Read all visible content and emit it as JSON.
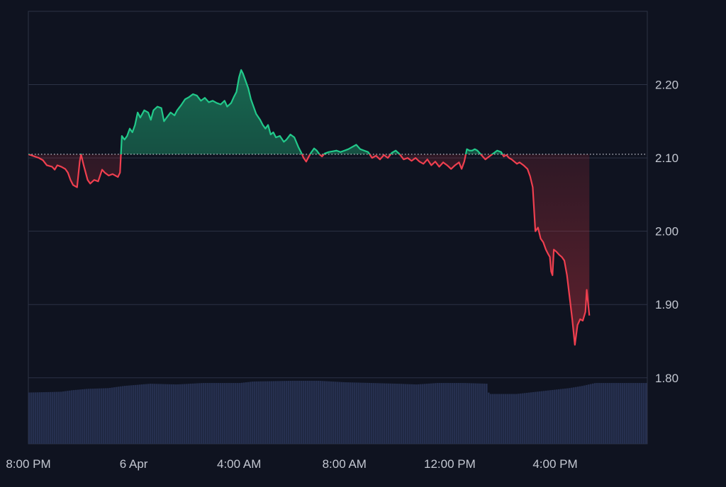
{
  "chart_data": {
    "type": "area",
    "baseline": 2.105,
    "ylim": [
      1.71,
      2.3
    ],
    "y_ticks": [
      {
        "value": 2.2,
        "label": "2.20"
      },
      {
        "value": 2.1,
        "label": "2.10"
      },
      {
        "value": 2.0,
        "label": "2.00"
      },
      {
        "value": 1.9,
        "label": "1.90"
      },
      {
        "value": 1.8,
        "label": "1.80"
      }
    ],
    "x_ticks": [
      {
        "t": 0,
        "label": "8:00 PM"
      },
      {
        "t": 4,
        "label": "6 Apr"
      },
      {
        "t": 8,
        "label": "4:00 AM"
      },
      {
        "t": 12,
        "label": "8:00 AM"
      },
      {
        "t": 16,
        "label": "12:00 PM"
      },
      {
        "t": 20,
        "label": "4:00 PM"
      }
    ],
    "x_range": [
      0,
      23.5
    ],
    "colors": {
      "up": "#22c98a",
      "down": "#ef3f4f",
      "grid": "#2c3345",
      "volume": "#26304f",
      "background": "#0f1320"
    },
    "price": [
      [
        0.0,
        2.105
      ],
      [
        0.4,
        2.1
      ],
      [
        0.55,
        2.097
      ],
      [
        0.7,
        2.09
      ],
      [
        0.9,
        2.088
      ],
      [
        1.0,
        2.084
      ],
      [
        1.1,
        2.09
      ],
      [
        1.25,
        2.088
      ],
      [
        1.4,
        2.085
      ],
      [
        1.5,
        2.08
      ],
      [
        1.6,
        2.07
      ],
      [
        1.7,
        2.063
      ],
      [
        1.85,
        2.06
      ],
      [
        1.95,
        2.095
      ],
      [
        2.0,
        2.105
      ],
      [
        2.1,
        2.09
      ],
      [
        2.25,
        2.07
      ],
      [
        2.35,
        2.065
      ],
      [
        2.5,
        2.07
      ],
      [
        2.65,
        2.068
      ],
      [
        2.8,
        2.084
      ],
      [
        2.9,
        2.08
      ],
      [
        3.05,
        2.076
      ],
      [
        3.2,
        2.078
      ],
      [
        3.4,
        2.074
      ],
      [
        3.48,
        2.08
      ],
      [
        3.55,
        2.13
      ],
      [
        3.65,
        2.125
      ],
      [
        3.75,
        2.13
      ],
      [
        3.85,
        2.14
      ],
      [
        3.95,
        2.135
      ],
      [
        4.05,
        2.145
      ],
      [
        4.15,
        2.162
      ],
      [
        4.25,
        2.155
      ],
      [
        4.4,
        2.165
      ],
      [
        4.55,
        2.162
      ],
      [
        4.65,
        2.152
      ],
      [
        4.75,
        2.165
      ],
      [
        4.9,
        2.17
      ],
      [
        5.05,
        2.168
      ],
      [
        5.15,
        2.15
      ],
      [
        5.25,
        2.155
      ],
      [
        5.4,
        2.162
      ],
      [
        5.55,
        2.158
      ],
      [
        5.65,
        2.165
      ],
      [
        5.8,
        2.172
      ],
      [
        5.95,
        2.18
      ],
      [
        6.1,
        2.183
      ],
      [
        6.25,
        2.187
      ],
      [
        6.4,
        2.185
      ],
      [
        6.55,
        2.178
      ],
      [
        6.7,
        2.182
      ],
      [
        6.85,
        2.176
      ],
      [
        7.0,
        2.178
      ],
      [
        7.15,
        2.175
      ],
      [
        7.3,
        2.173
      ],
      [
        7.45,
        2.178
      ],
      [
        7.55,
        2.17
      ],
      [
        7.7,
        2.175
      ],
      [
        7.8,
        2.183
      ],
      [
        7.9,
        2.19
      ],
      [
        8.0,
        2.21
      ],
      [
        8.08,
        2.22
      ],
      [
        8.15,
        2.215
      ],
      [
        8.25,
        2.205
      ],
      [
        8.35,
        2.195
      ],
      [
        8.45,
        2.18
      ],
      [
        8.55,
        2.17
      ],
      [
        8.65,
        2.16
      ],
      [
        8.8,
        2.152
      ],
      [
        8.9,
        2.145
      ],
      [
        9.0,
        2.14
      ],
      [
        9.1,
        2.145
      ],
      [
        9.2,
        2.132
      ],
      [
        9.3,
        2.135
      ],
      [
        9.4,
        2.128
      ],
      [
        9.55,
        2.13
      ],
      [
        9.7,
        2.122
      ],
      [
        9.8,
        2.125
      ],
      [
        9.95,
        2.132
      ],
      [
        10.1,
        2.128
      ],
      [
        10.25,
        2.115
      ],
      [
        10.35,
        2.108
      ],
      [
        10.45,
        2.1
      ],
      [
        10.55,
        2.095
      ],
      [
        10.65,
        2.102
      ],
      [
        10.75,
        2.108
      ],
      [
        10.85,
        2.113
      ],
      [
        10.95,
        2.11
      ],
      [
        11.05,
        2.105
      ],
      [
        11.15,
        2.102
      ],
      [
        11.25,
        2.106
      ],
      [
        11.4,
        2.108
      ],
      [
        11.55,
        2.109
      ],
      [
        11.7,
        2.11
      ],
      [
        11.85,
        2.108
      ],
      [
        12.0,
        2.11
      ],
      [
        12.15,
        2.112
      ],
      [
        12.3,
        2.115
      ],
      [
        12.45,
        2.118
      ],
      [
        12.6,
        2.112
      ],
      [
        12.75,
        2.11
      ],
      [
        12.9,
        2.108
      ],
      [
        13.05,
        2.1
      ],
      [
        13.2,
        2.103
      ],
      [
        13.35,
        2.098
      ],
      [
        13.5,
        2.104
      ],
      [
        13.65,
        2.1
      ],
      [
        13.8,
        2.107
      ],
      [
        13.95,
        2.11
      ],
      [
        14.1,
        2.105
      ],
      [
        14.25,
        2.098
      ],
      [
        14.4,
        2.1
      ],
      [
        14.55,
        2.096
      ],
      [
        14.7,
        2.1
      ],
      [
        14.85,
        2.095
      ],
      [
        15.0,
        2.092
      ],
      [
        15.15,
        2.098
      ],
      [
        15.3,
        2.09
      ],
      [
        15.45,
        2.095
      ],
      [
        15.6,
        2.088
      ],
      [
        15.75,
        2.094
      ],
      [
        15.9,
        2.09
      ],
      [
        16.05,
        2.085
      ],
      [
        16.2,
        2.09
      ],
      [
        16.35,
        2.094
      ],
      [
        16.45,
        2.085
      ],
      [
        16.55,
        2.095
      ],
      [
        16.65,
        2.112
      ],
      [
        16.75,
        2.11
      ],
      [
        16.85,
        2.11
      ],
      [
        16.95,
        2.112
      ],
      [
        17.05,
        2.11
      ],
      [
        17.2,
        2.104
      ],
      [
        17.35,
        2.098
      ],
      [
        17.5,
        2.102
      ],
      [
        17.65,
        2.106
      ],
      [
        17.8,
        2.11
      ],
      [
        17.95,
        2.108
      ],
      [
        18.05,
        2.102
      ],
      [
        18.15,
        2.104
      ],
      [
        18.25,
        2.1
      ],
      [
        18.35,
        2.098
      ],
      [
        18.45,
        2.095
      ],
      [
        18.55,
        2.092
      ],
      [
        18.65,
        2.094
      ],
      [
        18.8,
        2.09
      ],
      [
        18.95,
        2.085
      ],
      [
        19.05,
        2.075
      ],
      [
        19.15,
        2.06
      ],
      [
        19.25,
        2.0
      ],
      [
        19.35,
        2.005
      ],
      [
        19.45,
        1.99
      ],
      [
        19.55,
        1.985
      ],
      [
        19.65,
        1.975
      ],
      [
        19.75,
        1.968
      ],
      [
        19.8,
        1.965
      ],
      [
        19.85,
        1.945
      ],
      [
        19.9,
        1.94
      ],
      [
        19.95,
        1.975
      ],
      [
        20.05,
        1.972
      ],
      [
        20.15,
        1.968
      ],
      [
        20.25,
        1.965
      ],
      [
        20.35,
        1.96
      ],
      [
        20.45,
        1.94
      ],
      [
        20.55,
        1.91
      ],
      [
        20.65,
        1.88
      ],
      [
        20.75,
        1.845
      ],
      [
        20.85,
        1.872
      ],
      [
        20.95,
        1.88
      ],
      [
        21.05,
        1.878
      ],
      [
        21.15,
        1.89
      ],
      [
        21.2,
        1.92
      ],
      [
        21.3,
        1.885
      ]
    ],
    "volume": [
      [
        0.0,
        1.78
      ],
      [
        1.2,
        1.781
      ],
      [
        1.6,
        1.783
      ],
      [
        2.2,
        1.785
      ],
      [
        3.0,
        1.786
      ],
      [
        3.6,
        1.789
      ],
      [
        4.6,
        1.792
      ],
      [
        5.6,
        1.791
      ],
      [
        6.6,
        1.793
      ],
      [
        8.0,
        1.793
      ],
      [
        8.5,
        1.795
      ],
      [
        10.0,
        1.796
      ],
      [
        11.0,
        1.796
      ],
      [
        12.0,
        1.794
      ],
      [
        13.0,
        1.793
      ],
      [
        14.0,
        1.792
      ],
      [
        14.7,
        1.791
      ],
      [
        15.5,
        1.793
      ],
      [
        16.5,
        1.793
      ],
      [
        17.4,
        1.792
      ],
      [
        17.45,
        1.778
      ],
      [
        18.5,
        1.778
      ],
      [
        19.0,
        1.78
      ],
      [
        19.5,
        1.782
      ],
      [
        20.0,
        1.784
      ],
      [
        20.5,
        1.786
      ],
      [
        21.0,
        1.789
      ],
      [
        21.5,
        1.793
      ]
    ]
  }
}
